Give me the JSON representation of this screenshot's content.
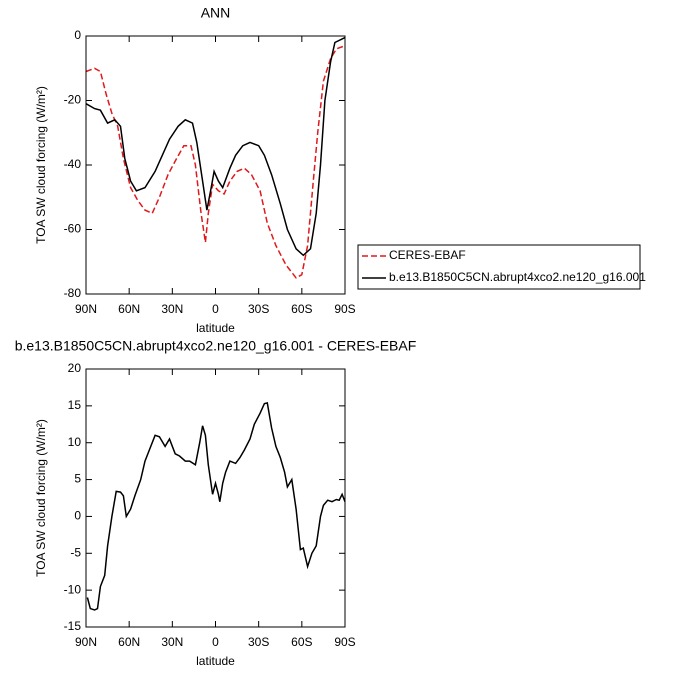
{
  "chart_data": [
    {
      "type": "line",
      "title": "ANN",
      "xlabel": "latitude",
      "ylabel": "TOA SW cloud forcing (W/m²)",
      "xlim": [
        90,
        -90
      ],
      "xticks": [
        {
          "value": 90,
          "label": "90N"
        },
        {
          "value": 60,
          "label": "60N"
        },
        {
          "value": 30,
          "label": "30N"
        },
        0,
        {
          "value": -30,
          "label": "30S"
        },
        {
          "value": -60,
          "label": "60S"
        },
        {
          "value": -90,
          "label": "90S"
        }
      ],
      "ylim": [
        -80,
        0
      ],
      "yticks": [
        -80,
        -60,
        -40,
        -20,
        0
      ],
      "legend": "outside-right",
      "series": [
        {
          "name": "CERES-EBAF",
          "color": "#e0191c",
          "line_style": "dashed",
          "x": [
            90,
            84,
            80,
            76,
            72,
            68,
            64,
            59,
            54,
            49,
            44,
            39,
            33,
            27,
            22,
            17,
            14,
            10,
            7,
            5,
            2,
            -2,
            -6,
            -10,
            -15,
            -20,
            -25,
            -31,
            -36,
            -42,
            -49,
            -56,
            -60,
            -64,
            -68,
            -71,
            -75,
            -80,
            -84,
            -90
          ],
          "values": [
            -11,
            -10,
            -11,
            -18,
            -24,
            -28,
            -38,
            -47,
            -51,
            -54,
            -55,
            -50,
            -43,
            -38,
            -34,
            -34,
            -40,
            -55,
            -64,
            -55,
            -46,
            -48,
            -49,
            -45,
            -42,
            -41,
            -43,
            -48,
            -58,
            -65,
            -71,
            -75,
            -74,
            -65,
            -45,
            -30,
            -14,
            -7,
            -4,
            -3
          ]
        },
        {
          "name": "b.e13.B1850C5CN.abrupt4xco2.ne120_g16.001",
          "color": "#000000",
          "line_style": "solid",
          "x": [
            90,
            84,
            80,
            75,
            70,
            66,
            63,
            59,
            55,
            49,
            42,
            37,
            32,
            26,
            21,
            16,
            13,
            9,
            6,
            3,
            1,
            -2,
            -5,
            -10,
            -14,
            -19,
            -24,
            -30,
            -34,
            -39,
            -45,
            -50,
            -56,
            -61,
            -66,
            -70,
            -73,
            -76,
            -80,
            -83,
            -90
          ],
          "values": [
            -21,
            -22.5,
            -23,
            -27,
            -26,
            -28,
            -38,
            -45,
            -48,
            -47,
            -42,
            -37,
            -32,
            -28,
            -26,
            -27,
            -33,
            -45,
            -54,
            -47,
            -42,
            -45,
            -47,
            -41,
            -37,
            -34,
            -33,
            -34,
            -37,
            -43,
            -52,
            -60,
            -66,
            -68,
            -66,
            -55,
            -40,
            -20,
            -8,
            -2,
            -0.5
          ]
        }
      ]
    },
    {
      "type": "line",
      "title": "b.e13.B1850C5CN.abrupt4xco2.ne120_g16.001 - CERES-EBAF",
      "xlabel": "latitude",
      "ylabel": "TOA SW cloud forcing (W/m²)",
      "xlim": [
        90,
        -90
      ],
      "xticks": [
        {
          "value": 90,
          "label": "90N"
        },
        {
          "value": 60,
          "label": "60N"
        },
        {
          "value": 30,
          "label": "30N"
        },
        0,
        {
          "value": -30,
          "label": "30S"
        },
        {
          "value": -60,
          "label": "60S"
        },
        {
          "value": -90,
          "label": "90S"
        }
      ],
      "ylim": [
        -15,
        20
      ],
      "yticks": [
        -15,
        -10,
        -5,
        0,
        5,
        10,
        15,
        20
      ],
      "series": [
        {
          "color": "#000000",
          "line_style": "solid",
          "x": [
            89,
            87,
            84,
            82,
            80,
            77,
            75,
            72,
            69,
            66,
            64,
            62,
            59,
            56,
            52,
            49,
            46,
            42,
            39,
            35,
            32,
            28,
            25,
            21,
            18,
            14,
            11,
            9,
            7,
            5,
            2,
            0,
            -2,
            -3,
            -5,
            -7,
            -10,
            -14,
            -17,
            -20,
            -24,
            -27,
            -31,
            -34,
            -36,
            -39,
            -42,
            -45,
            -48,
            -50,
            -53,
            -56,
            -59,
            -61,
            -64,
            -67,
            -70,
            -73,
            -75,
            -78,
            -81,
            -84,
            -86,
            -88,
            -90
          ],
          "values": [
            -11,
            -12.5,
            -12.7,
            -12.5,
            -9.5,
            -8,
            -4,
            0,
            3.4,
            3.3,
            2.8,
            0,
            1,
            2.8,
            5,
            7.5,
            9,
            11,
            10.8,
            9.5,
            10.5,
            8.5,
            8.2,
            7.5,
            7.5,
            7,
            10,
            12.3,
            11,
            7,
            3,
            4.5,
            3,
            2,
            4.5,
            6,
            7.5,
            7.2,
            8,
            9,
            10.5,
            12.5,
            14,
            15.3,
            15.4,
            12,
            9.5,
            8,
            6,
            4,
            5,
            1,
            -4.5,
            -4.3,
            -6.8,
            -5,
            -4,
            0,
            1.5,
            2.2,
            2,
            2.3,
            2.2,
            3,
            2
          ]
        }
      ]
    }
  ]
}
